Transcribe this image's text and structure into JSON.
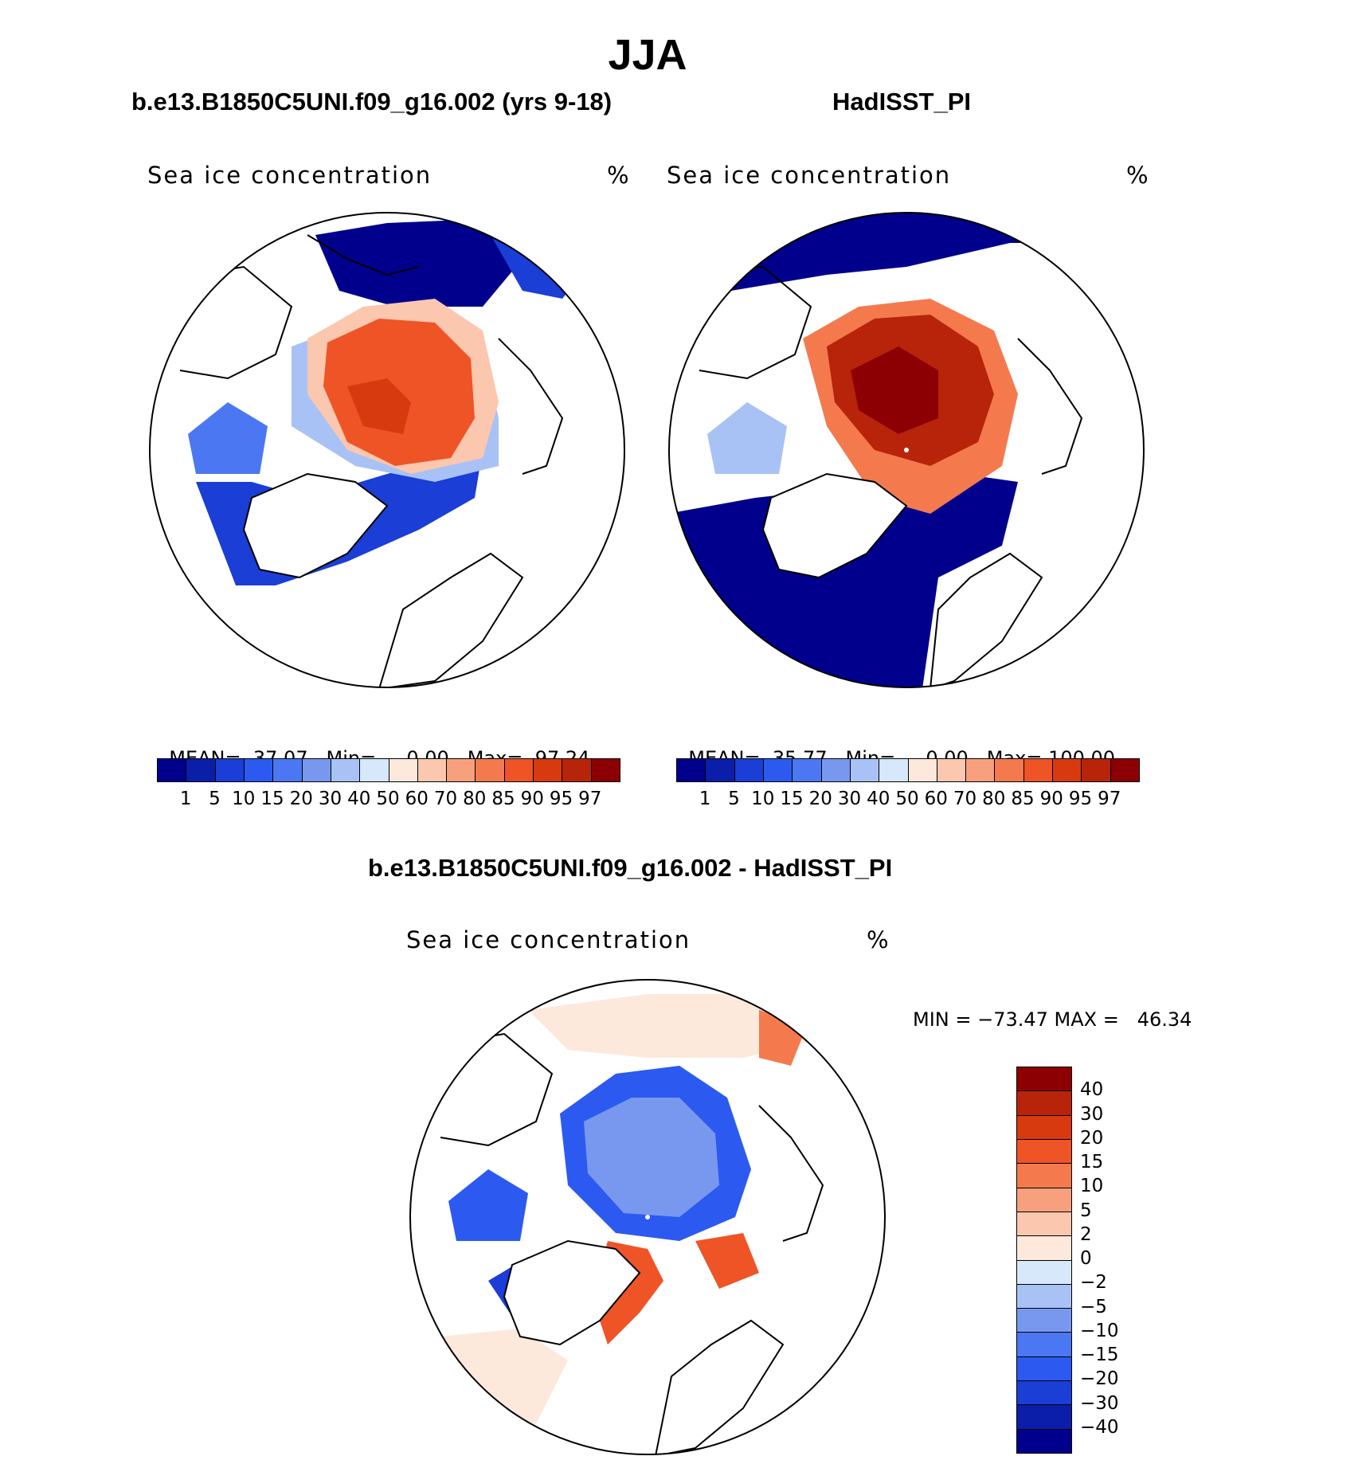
{
  "figure": {
    "title": "JJA",
    "panels": [
      {
        "id": "model",
        "title": "b.e13.B1850C5UNI.f09_g16.002 (yrs 9-18)",
        "variable": "Sea ice concentration",
        "units": "%",
        "stats": {
          "mean": "37.07",
          "min": "0.00",
          "max": "97.24"
        },
        "stat_labels": {
          "mean": "MEAN=",
          "min": "Min=",
          "max": "Max="
        }
      },
      {
        "id": "obs",
        "title": "HadISST_PI",
        "variable": "Sea ice concentration",
        "units": "%",
        "stats": {
          "mean": "35.77",
          "min": "0.00",
          "max": "100.00"
        },
        "stat_labels": {
          "mean": "MEAN=",
          "min": "Min=",
          "max": "Max="
        }
      },
      {
        "id": "diff",
        "title": "b.e13.B1850C5UNI.f09_g16.002 - HadISST_PI",
        "variable": "Sea ice concentration",
        "units": "%",
        "stats_text": "MIN = −73.47 MAX =   46.34"
      }
    ],
    "colorbar_concentration": {
      "levels": [
        "1",
        "5",
        "10",
        "15",
        "20",
        "30",
        "40",
        "50",
        "60",
        "70",
        "80",
        "85",
        "90",
        "95",
        "97"
      ],
      "colors": [
        "#00008c",
        "#0a1eaa",
        "#1a3ed6",
        "#2c5af0",
        "#4b78f2",
        "#7898f0",
        "#a8c2f6",
        "#d6e8fa",
        "#fde8dc",
        "#fbc7ae",
        "#f8a07e",
        "#f47a4e",
        "#ee5426",
        "#d83a10",
        "#b8240a",
        "#8c0004"
      ]
    },
    "colorbar_difference": {
      "levels": [
        "40",
        "30",
        "20",
        "15",
        "10",
        "5",
        "2",
        "0",
        "−2",
        "−5",
        "−10",
        "−15",
        "−20",
        "−30",
        "−40"
      ],
      "colors": [
        "#8c0004",
        "#b8240a",
        "#d83a10",
        "#ee5426",
        "#f47a4e",
        "#f8a07e",
        "#fbc7ae",
        "#fde8dc",
        "#d6e8fa",
        "#a8c2f6",
        "#7898f0",
        "#4b78f2",
        "#2c5af0",
        "#1a3ed6",
        "#0a1eaa",
        "#00008c"
      ]
    }
  }
}
